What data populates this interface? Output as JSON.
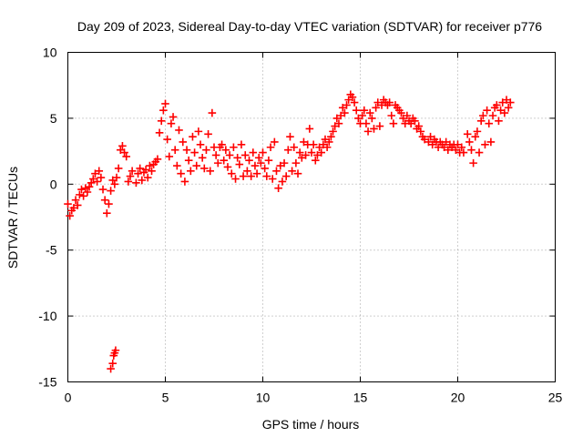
{
  "chart_data": {
    "type": "scatter",
    "title": "Day 209 of 2023, Sidereal Day-to-day VTEC variation (SDTVAR) for receiver p776",
    "xlabel": "GPS time / hours",
    "ylabel": "SDTVAR / TECUs",
    "xlim": [
      0,
      25
    ],
    "ylim": [
      -15,
      10
    ],
    "xticks": [
      0,
      5,
      10,
      15,
      20,
      25
    ],
    "yticks": [
      -15,
      -10,
      -5,
      0,
      5,
      10
    ],
    "xtick_labels": [
      "0",
      "5",
      "10",
      "15",
      "20",
      "25"
    ],
    "ytick_labels": [
      "-15",
      "-10",
      "-5",
      "0",
      "5",
      "10"
    ],
    "grid": true,
    "marker": "+",
    "marker_color": "#ff0000",
    "series": [
      {
        "name": "SDTVAR",
        "points": [
          [
            0.0,
            -1.5
          ],
          [
            0.1,
            -2.4
          ],
          [
            0.2,
            -2.0
          ],
          [
            0.3,
            -1.8
          ],
          [
            0.4,
            -1.2
          ],
          [
            0.5,
            -1.6
          ],
          [
            0.6,
            -0.8
          ],
          [
            0.7,
            -0.4
          ],
          [
            0.8,
            -0.9
          ],
          [
            0.9,
            -0.3
          ],
          [
            1.0,
            -0.6
          ],
          [
            1.1,
            -0.2
          ],
          [
            1.2,
            0.1
          ],
          [
            1.3,
            0.4
          ],
          [
            1.4,
            0.8
          ],
          [
            1.5,
            0.2
          ],
          [
            1.6,
            1.0
          ],
          [
            1.7,
            0.5
          ],
          [
            1.8,
            -0.4
          ],
          [
            1.9,
            -1.2
          ],
          [
            2.0,
            -2.2
          ],
          [
            2.1,
            -1.5
          ],
          [
            2.2,
            -0.5
          ],
          [
            2.3,
            0.3
          ],
          [
            2.4,
            0.0
          ],
          [
            2.5,
            0.5
          ],
          [
            2.6,
            1.2
          ],
          [
            2.7,
            2.6
          ],
          [
            2.8,
            2.9
          ],
          [
            2.9,
            2.4
          ],
          [
            3.0,
            2.1
          ],
          [
            3.1,
            0.2
          ],
          [
            3.2,
            0.6
          ],
          [
            3.3,
            1.0
          ],
          [
            3.5,
            0.1
          ],
          [
            3.6,
            0.8
          ],
          [
            3.7,
            1.2
          ],
          [
            3.8,
            0.3
          ],
          [
            3.9,
            0.9
          ],
          [
            4.0,
            1.1
          ],
          [
            4.1,
            0.5
          ],
          [
            4.2,
            1.4
          ],
          [
            4.3,
            1.0
          ],
          [
            4.4,
            1.5
          ],
          [
            4.5,
            1.7
          ],
          [
            4.6,
            1.9
          ],
          [
            4.7,
            3.9
          ],
          [
            4.8,
            4.8
          ],
          [
            4.9,
            5.6
          ],
          [
            5.0,
            6.1
          ],
          [
            5.1,
            3.4
          ],
          [
            5.2,
            2.1
          ],
          [
            5.3,
            4.6
          ],
          [
            5.4,
            5.1
          ],
          [
            5.5,
            2.6
          ],
          [
            5.6,
            1.4
          ],
          [
            5.7,
            4.1
          ],
          [
            5.8,
            0.8
          ],
          [
            5.9,
            3.2
          ],
          [
            6.0,
            0.2
          ],
          [
            6.1,
            2.6
          ],
          [
            6.2,
            1.8
          ],
          [
            6.3,
            1.0
          ],
          [
            6.4,
            3.6
          ],
          [
            6.5,
            2.4
          ],
          [
            6.6,
            1.4
          ],
          [
            6.7,
            4.0
          ],
          [
            6.8,
            3.0
          ],
          [
            6.9,
            2.0
          ],
          [
            7.0,
            1.2
          ],
          [
            7.1,
            2.6
          ],
          [
            7.2,
            3.8
          ],
          [
            7.3,
            1.0
          ],
          [
            7.4,
            5.4
          ],
          [
            7.5,
            2.8
          ],
          [
            7.6,
            2.2
          ],
          [
            7.7,
            1.6
          ],
          [
            7.8,
            2.8
          ],
          [
            7.9,
            3.0
          ],
          [
            8.0,
            1.8
          ],
          [
            8.1,
            2.6
          ],
          [
            8.2,
            1.3
          ],
          [
            8.3,
            2.2
          ],
          [
            8.4,
            0.8
          ],
          [
            8.5,
            2.8
          ],
          [
            8.6,
            0.4
          ],
          [
            8.7,
            2.0
          ],
          [
            8.8,
            1.5
          ],
          [
            8.9,
            3.0
          ],
          [
            9.0,
            0.6
          ],
          [
            9.1,
            2.2
          ],
          [
            9.2,
            1.0
          ],
          [
            9.3,
            1.8
          ],
          [
            9.4,
            0.6
          ],
          [
            9.5,
            2.4
          ],
          [
            9.6,
            1.4
          ],
          [
            9.7,
            0.8
          ],
          [
            9.8,
            2.0
          ],
          [
            9.9,
            1.6
          ],
          [
            10.0,
            2.4
          ],
          [
            10.1,
            1.2
          ],
          [
            10.2,
            0.6
          ],
          [
            10.3,
            1.8
          ],
          [
            10.4,
            2.8
          ],
          [
            10.5,
            0.4
          ],
          [
            10.6,
            3.2
          ],
          [
            10.7,
            1.0
          ],
          [
            10.8,
            -0.3
          ],
          [
            10.9,
            1.4
          ],
          [
            11.0,
            0.2
          ],
          [
            11.1,
            1.6
          ],
          [
            11.2,
            0.6
          ],
          [
            11.3,
            2.6
          ],
          [
            11.4,
            3.6
          ],
          [
            11.5,
            1.0
          ],
          [
            11.6,
            2.8
          ],
          [
            11.7,
            1.6
          ],
          [
            11.8,
            0.8
          ],
          [
            11.9,
            2.4
          ],
          [
            12.0,
            2.0
          ],
          [
            12.1,
            3.2
          ],
          [
            12.2,
            2.2
          ],
          [
            12.3,
            3.0
          ],
          [
            12.4,
            4.2
          ],
          [
            12.5,
            2.4
          ],
          [
            12.6,
            3.0
          ],
          [
            12.7,
            1.8
          ],
          [
            12.8,
            2.2
          ],
          [
            12.9,
            2.8
          ],
          [
            13.0,
            2.4
          ],
          [
            13.1,
            3.0
          ],
          [
            13.2,
            3.4
          ],
          [
            13.3,
            2.8
          ],
          [
            13.4,
            3.2
          ],
          [
            13.5,
            3.6
          ],
          [
            13.6,
            4.0
          ],
          [
            13.7,
            4.4
          ],
          [
            13.8,
            5.0
          ],
          [
            13.9,
            4.6
          ],
          [
            14.0,
            5.2
          ],
          [
            14.1,
            5.8
          ],
          [
            14.2,
            5.4
          ],
          [
            14.3,
            6.0
          ],
          [
            14.4,
            6.4
          ],
          [
            14.5,
            6.8
          ],
          [
            14.6,
            6.6
          ],
          [
            14.7,
            6.2
          ],
          [
            14.8,
            5.6
          ],
          [
            14.9,
            5.0
          ],
          [
            15.0,
            4.6
          ],
          [
            15.1,
            5.2
          ],
          [
            15.2,
            5.6
          ],
          [
            15.3,
            4.6
          ],
          [
            15.4,
            4.0
          ],
          [
            15.5,
            5.4
          ],
          [
            15.6,
            5.0
          ],
          [
            15.7,
            4.2
          ],
          [
            15.8,
            5.8
          ],
          [
            15.9,
            6.2
          ],
          [
            16.0,
            4.4
          ],
          [
            16.1,
            6.0
          ],
          [
            16.2,
            6.4
          ],
          [
            16.3,
            6.2
          ],
          [
            16.4,
            6.0
          ],
          [
            16.5,
            6.2
          ],
          [
            16.6,
            5.2
          ],
          [
            16.7,
            4.6
          ],
          [
            16.8,
            6.0
          ],
          [
            16.9,
            5.8
          ],
          [
            17.0,
            5.6
          ],
          [
            17.1,
            5.4
          ],
          [
            17.2,
            5.0
          ],
          [
            17.3,
            4.6
          ],
          [
            17.4,
            5.2
          ],
          [
            17.5,
            4.8
          ],
          [
            17.6,
            4.6
          ],
          [
            17.7,
            5.0
          ],
          [
            17.8,
            4.8
          ],
          [
            17.9,
            4.2
          ],
          [
            18.0,
            4.4
          ],
          [
            18.1,
            4.0
          ],
          [
            18.2,
            3.6
          ],
          [
            18.3,
            3.4
          ],
          [
            18.5,
            3.2
          ],
          [
            18.6,
            3.6
          ],
          [
            18.7,
            3.0
          ],
          [
            18.8,
            3.4
          ],
          [
            18.9,
            3.2
          ],
          [
            19.0,
            2.8
          ],
          [
            19.1,
            3.2
          ],
          [
            19.2,
            3.0
          ],
          [
            19.3,
            2.8
          ],
          [
            19.4,
            3.2
          ],
          [
            19.5,
            2.6
          ],
          [
            19.6,
            3.0
          ],
          [
            19.7,
            2.8
          ],
          [
            19.8,
            3.0
          ],
          [
            19.9,
            2.6
          ],
          [
            20.0,
            3.0
          ],
          [
            20.1,
            2.4
          ],
          [
            20.2,
            2.8
          ],
          [
            20.3,
            2.4
          ],
          [
            20.5,
            3.8
          ],
          [
            20.6,
            3.2
          ],
          [
            20.7,
            2.6
          ],
          [
            20.8,
            1.6
          ],
          [
            20.9,
            3.6
          ],
          [
            21.0,
            4.0
          ],
          [
            21.1,
            2.4
          ],
          [
            21.2,
            4.8
          ],
          [
            21.3,
            5.2
          ],
          [
            21.4,
            3.0
          ],
          [
            21.5,
            5.6
          ],
          [
            21.6,
            4.6
          ],
          [
            21.7,
            3.2
          ],
          [
            21.8,
            5.2
          ],
          [
            21.9,
            5.8
          ],
          [
            22.0,
            6.0
          ],
          [
            22.1,
            4.8
          ],
          [
            22.2,
            5.6
          ],
          [
            22.3,
            6.2
          ],
          [
            22.4,
            5.4
          ],
          [
            22.5,
            6.4
          ],
          [
            22.6,
            5.8
          ],
          [
            22.7,
            6.2
          ],
          [
            2.3,
            -13.6
          ],
          [
            2.35,
            -13.0
          ],
          [
            2.4,
            -12.8
          ],
          [
            2.45,
            -12.6
          ],
          [
            2.2,
            -14.0
          ]
        ]
      }
    ]
  }
}
